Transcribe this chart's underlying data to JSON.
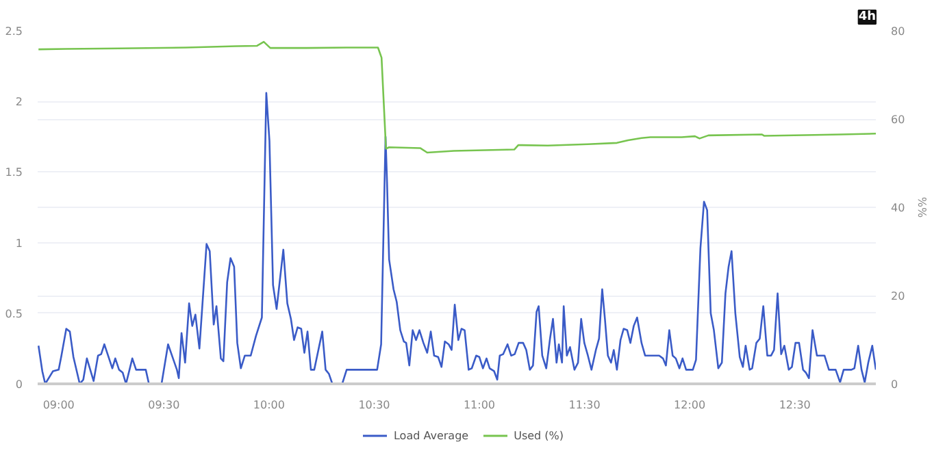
{
  "chart_data": {
    "type": "line",
    "y2label": "%%",
    "annotations": [
      "4h"
    ],
    "xlim": [
      8.9,
      12.885
    ],
    "xticks": [
      {
        "value": 9,
        "label": "09:00"
      },
      {
        "value": 9.5,
        "label": "09:30"
      },
      {
        "value": 10,
        "label": "10:00"
      },
      {
        "value": 10.5,
        "label": "10:30"
      },
      {
        "value": 11,
        "label": "11:00"
      },
      {
        "value": 11.5,
        "label": "11:30"
      },
      {
        "value": 12,
        "label": "12:00"
      },
      {
        "value": 12.5,
        "label": "12:30"
      }
    ],
    "ylim": [
      0,
      2.5
    ],
    "yticks": [
      0,
      0.5,
      1,
      1.5,
      2,
      2.5
    ],
    "y2lim": [
      0,
      80
    ],
    "y2ticks": [
      0,
      20,
      40,
      60,
      80
    ],
    "grid": "y",
    "legend": "bottom",
    "marker": "none",
    "line_style": "solid",
    "series": [
      {
        "name": "Load Average",
        "color": "#3a5bc7",
        "x": [
          8.904,
          8.922,
          8.936,
          8.973,
          9.0,
          9.013,
          9.036,
          9.053,
          9.07,
          9.1,
          9.117,
          9.134,
          9.166,
          9.187,
          9.202,
          9.217,
          9.255,
          9.269,
          9.287,
          9.304,
          9.32,
          9.35,
          9.368,
          9.414,
          9.429,
          9.489,
          9.52,
          9.562,
          9.571,
          9.584,
          9.601,
          9.62,
          9.635,
          9.65,
          9.669,
          9.703,
          9.718,
          9.737,
          9.75,
          9.771,
          9.783,
          9.801,
          9.817,
          9.834,
          9.849,
          9.866,
          9.885,
          9.913,
          9.938,
          9.966,
          9.987,
          10.002,
          10.019,
          10.036,
          10.068,
          10.087,
          10.104,
          10.119,
          10.136,
          10.153,
          10.168,
          10.183,
          10.199,
          10.215,
          10.253,
          10.269,
          10.285,
          10.301,
          10.348,
          10.369,
          10.514,
          10.533,
          10.554,
          10.561,
          10.571,
          10.592,
          10.607,
          10.624,
          10.641,
          10.652,
          10.667,
          10.683,
          10.699,
          10.715,
          10.734,
          10.752,
          10.769,
          10.785,
          10.804,
          10.82,
          10.836,
          10.854,
          10.868,
          10.883,
          10.9,
          10.915,
          10.93,
          10.949,
          10.964,
          10.985,
          11.0,
          11.017,
          11.034,
          11.049,
          11.07,
          11.085,
          11.097,
          11.113,
          11.134,
          11.151,
          11.168,
          11.187,
          11.208,
          11.223,
          11.24,
          11.255,
          11.272,
          11.282,
          11.299,
          11.318,
          11.336,
          11.35,
          11.367,
          11.378,
          11.393,
          11.401,
          11.416,
          11.431,
          11.452,
          11.469,
          11.484,
          11.499,
          11.516,
          11.533,
          11.554,
          11.569,
          11.584,
          11.597,
          11.611,
          11.626,
          11.639,
          11.654,
          11.671,
          11.686,
          11.703,
          11.718,
          11.734,
          11.75,
          11.771,
          11.788,
          11.855,
          11.873,
          11.887,
          11.903,
          11.919,
          11.934,
          11.951,
          11.966,
          11.983,
          12.015,
          12.03,
          12.051,
          12.068,
          12.083,
          12.1,
          12.115,
          12.136,
          12.153,
          12.17,
          12.185,
          12.199,
          12.217,
          12.238,
          12.253,
          12.266,
          12.285,
          12.297,
          12.317,
          12.333,
          12.35,
          12.369,
          12.387,
          12.401,
          12.418,
          12.435,
          12.45,
          12.471,
          12.486,
          12.503,
          12.52,
          12.539,
          12.552,
          12.567,
          12.584,
          12.605,
          12.641,
          12.662,
          12.694,
          12.715,
          12.732,
          12.769,
          12.783,
          12.801,
          12.817,
          12.832,
          12.849,
          12.868,
          12.885
        ],
        "values": [
          0.27,
          0.09,
          0,
          0.09,
          0.1,
          0.2,
          0.39,
          0.37,
          0.19,
          0,
          0.03,
          0.18,
          0.02,
          0.2,
          0.21,
          0.28,
          0.11,
          0.18,
          0.1,
          0.08,
          0,
          0.18,
          0.1,
          0.1,
          0,
          0,
          0.28,
          0.1,
          0.04,
          0.36,
          0.15,
          0.57,
          0.41,
          0.49,
          0.25,
          0.99,
          0.94,
          0.42,
          0.55,
          0.18,
          0.16,
          0.72,
          0.89,
          0.83,
          0.29,
          0.11,
          0.2,
          0.2,
          0.34,
          0.47,
          2.06,
          1.72,
          0.7,
          0.53,
          0.95,
          0.57,
          0.46,
          0.31,
          0.4,
          0.39,
          0.22,
          0.37,
          0.1,
          0.1,
          0.37,
          0.1,
          0.07,
          0,
          0,
          0.1,
          0.1,
          0.28,
          1.75,
          1.43,
          0.88,
          0.67,
          0.58,
          0.38,
          0.3,
          0.29,
          0.13,
          0.38,
          0.31,
          0.38,
          0.29,
          0.22,
          0.37,
          0.2,
          0.19,
          0.12,
          0.3,
          0.28,
          0.24,
          0.56,
          0.31,
          0.39,
          0.38,
          0.1,
          0.11,
          0.2,
          0.19,
          0.11,
          0.18,
          0.11,
          0.09,
          0.03,
          0.2,
          0.21,
          0.28,
          0.2,
          0.21,
          0.29,
          0.29,
          0.24,
          0.1,
          0.13,
          0.51,
          0.55,
          0.2,
          0.11,
          0.32,
          0.46,
          0.15,
          0.28,
          0.15,
          0.55,
          0.2,
          0.26,
          0.1,
          0.15,
          0.46,
          0.29,
          0.2,
          0.1,
          0.24,
          0.32,
          0.67,
          0.46,
          0.2,
          0.15,
          0.24,
          0.1,
          0.31,
          0.39,
          0.38,
          0.29,
          0.41,
          0.47,
          0.29,
          0.2,
          0.2,
          0.18,
          0.13,
          0.38,
          0.2,
          0.18,
          0.11,
          0.18,
          0.1,
          0.1,
          0.17,
          0.96,
          1.29,
          1.23,
          0.5,
          0.38,
          0.11,
          0.15,
          0.64,
          0.83,
          0.94,
          0.5,
          0.19,
          0.12,
          0.27,
          0.1,
          0.11,
          0.29,
          0.32,
          0.55,
          0.2,
          0.2,
          0.24,
          0.64,
          0.21,
          0.27,
          0.1,
          0.12,
          0.29,
          0.29,
          0.1,
          0.08,
          0.04,
          0.38,
          0.2,
          0.2,
          0.1,
          0.1,
          0.01,
          0.1,
          0.1,
          0.11,
          0.27,
          0.1,
          0.01,
          0.15,
          0.27,
          0.1
        ]
      },
      {
        "name": "Used (%)",
        "color": "#77c44f",
        "axis": "y2",
        "x": [
          8.904,
          9.032,
          9.287,
          9.605,
          9.841,
          9.943,
          9.975,
          10.006,
          10.178,
          10.369,
          10.518,
          10.535,
          10.556,
          10.571,
          10.72,
          10.752,
          10.879,
          11.166,
          11.185,
          11.325,
          11.516,
          11.654,
          11.707,
          11.771,
          11.813,
          11.962,
          12.025,
          12.047,
          12.089,
          12.344,
          12.355,
          12.592,
          12.72,
          12.885
        ],
        "values": [
          75.8,
          75.9,
          76.0,
          76.2,
          76.5,
          76.6,
          77.5,
          76.1,
          76.1,
          76.2,
          76.2,
          73.9,
          53.3,
          53.6,
          53.4,
          52.4,
          52.8,
          53.1,
          54.1,
          54.0,
          54.3,
          54.6,
          55.2,
          55.7,
          55.9,
          55.9,
          56.1,
          55.6,
          56.3,
          56.5,
          56.2,
          56.4,
          56.5,
          56.7
        ]
      }
    ]
  }
}
